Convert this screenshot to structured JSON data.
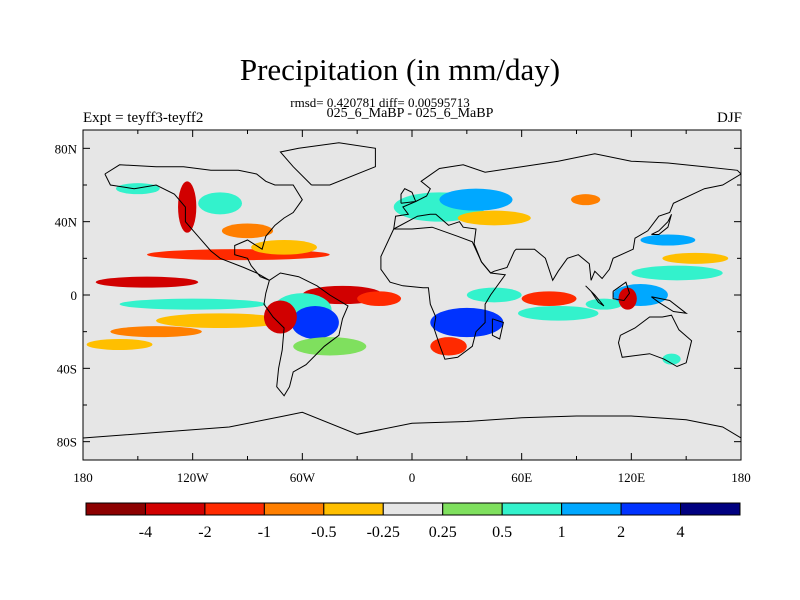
{
  "chart_data": {
    "type": "heatmap",
    "title": "Precipitation (in mm/day)",
    "stats_line": "rmsd= 0.420781 diff= 0.00595713",
    "comparison_label": "025_6_MaBP - 025_6_MaBP",
    "experiment_label": "Expt = teyff3-teyff2",
    "season_label": "DJF",
    "x_axis": {
      "range": [
        -180,
        180
      ],
      "ticks": [
        -180,
        -120,
        -60,
        0,
        60,
        120,
        180
      ],
      "tick_labels": [
        "180",
        "120W",
        "60W",
        "0",
        "60E",
        "120E",
        "180"
      ]
    },
    "y_axis": {
      "range": [
        -90,
        90
      ],
      "ticks": [
        80,
        40,
        0,
        -40,
        -80
      ],
      "tick_labels": [
        "80N",
        "40N",
        "0",
        "40S",
        "80S"
      ]
    },
    "colorbar": {
      "levels": [
        "-4",
        "-2",
        "-1",
        "-0.5",
        "-0.25",
        "0.25",
        "0.5",
        "1",
        "2",
        "4"
      ],
      "colors": [
        "#8c0000",
        "#d10000",
        "#ff2a00",
        "#ff7f00",
        "#ffbf00",
        "#e6e6e6",
        "#7fe05e",
        "#33f2cc",
        "#00a8ff",
        "#0033ff",
        "#000080"
      ]
    },
    "anomaly_regions": [
      {
        "lon": -95,
        "lat": 22,
        "rx": 50,
        "ry": 3,
        "level": 2
      },
      {
        "lon": -145,
        "lat": 7,
        "rx": 28,
        "ry": 3,
        "level": 1
      },
      {
        "lon": -120,
        "lat": -5,
        "rx": 40,
        "ry": 3,
        "level": 7
      },
      {
        "lon": -105,
        "lat": -14,
        "rx": 35,
        "ry": 4,
        "level": 4
      },
      {
        "lon": -140,
        "lat": -20,
        "rx": 25,
        "ry": 3,
        "level": 3
      },
      {
        "lon": -160,
        "lat": -27,
        "rx": 18,
        "ry": 3,
        "level": 4
      },
      {
        "lon": -38,
        "lat": 0,
        "rx": 22,
        "ry": 5,
        "level": 1
      },
      {
        "lon": -18,
        "lat": -2,
        "rx": 12,
        "ry": 4,
        "level": 2
      },
      {
        "lon": -60,
        "lat": -8,
        "rx": 16,
        "ry": 9,
        "level": 7
      },
      {
        "lon": -53,
        "lat": -15,
        "rx": 13,
        "ry": 9,
        "level": 9
      },
      {
        "lon": -72,
        "lat": -12,
        "rx": 9,
        "ry": 9,
        "level": 1
      },
      {
        "lon": -45,
        "lat": -28,
        "rx": 20,
        "ry": 5,
        "level": 6
      },
      {
        "lon": -150,
        "lat": 58,
        "rx": 12,
        "ry": 3,
        "level": 7
      },
      {
        "lon": -123,
        "lat": 48,
        "rx": 5,
        "ry": 14,
        "level": 1
      },
      {
        "lon": -105,
        "lat": 50,
        "rx": 12,
        "ry": 6,
        "level": 7
      },
      {
        "lon": -90,
        "lat": 35,
        "rx": 14,
        "ry": 4,
        "level": 3
      },
      {
        "lon": -70,
        "lat": 26,
        "rx": 18,
        "ry": 4,
        "level": 4
      },
      {
        "lon": 15,
        "lat": 48,
        "rx": 25,
        "ry": 8,
        "level": 7
      },
      {
        "lon": 35,
        "lat": 52,
        "rx": 20,
        "ry": 6,
        "level": 8
      },
      {
        "lon": 45,
        "lat": 42,
        "rx": 20,
        "ry": 4,
        "level": 4
      },
      {
        "lon": 30,
        "lat": -15,
        "rx": 20,
        "ry": 8,
        "level": 9
      },
      {
        "lon": 20,
        "lat": -28,
        "rx": 10,
        "ry": 5,
        "level": 2
      },
      {
        "lon": 45,
        "lat": 0,
        "rx": 15,
        "ry": 4,
        "level": 7
      },
      {
        "lon": 75,
        "lat": -2,
        "rx": 15,
        "ry": 4,
        "level": 2
      },
      {
        "lon": 80,
        "lat": -10,
        "rx": 22,
        "ry": 4,
        "level": 7
      },
      {
        "lon": 105,
        "lat": -5,
        "rx": 10,
        "ry": 3,
        "level": 7
      },
      {
        "lon": 125,
        "lat": 0,
        "rx": 15,
        "ry": 6,
        "level": 8
      },
      {
        "lon": 118,
        "lat": -2,
        "rx": 5,
        "ry": 6,
        "level": 1
      },
      {
        "lon": 145,
        "lat": 12,
        "rx": 25,
        "ry": 4,
        "level": 7
      },
      {
        "lon": 155,
        "lat": 20,
        "rx": 18,
        "ry": 3,
        "level": 4
      },
      {
        "lon": 140,
        "lat": 30,
        "rx": 15,
        "ry": 3,
        "level": 8
      },
      {
        "lon": 95,
        "lat": 52,
        "rx": 8,
        "ry": 3,
        "level": 3
      },
      {
        "lon": 142,
        "lat": -35,
        "rx": 5,
        "ry": 3,
        "level": 7
      }
    ]
  }
}
